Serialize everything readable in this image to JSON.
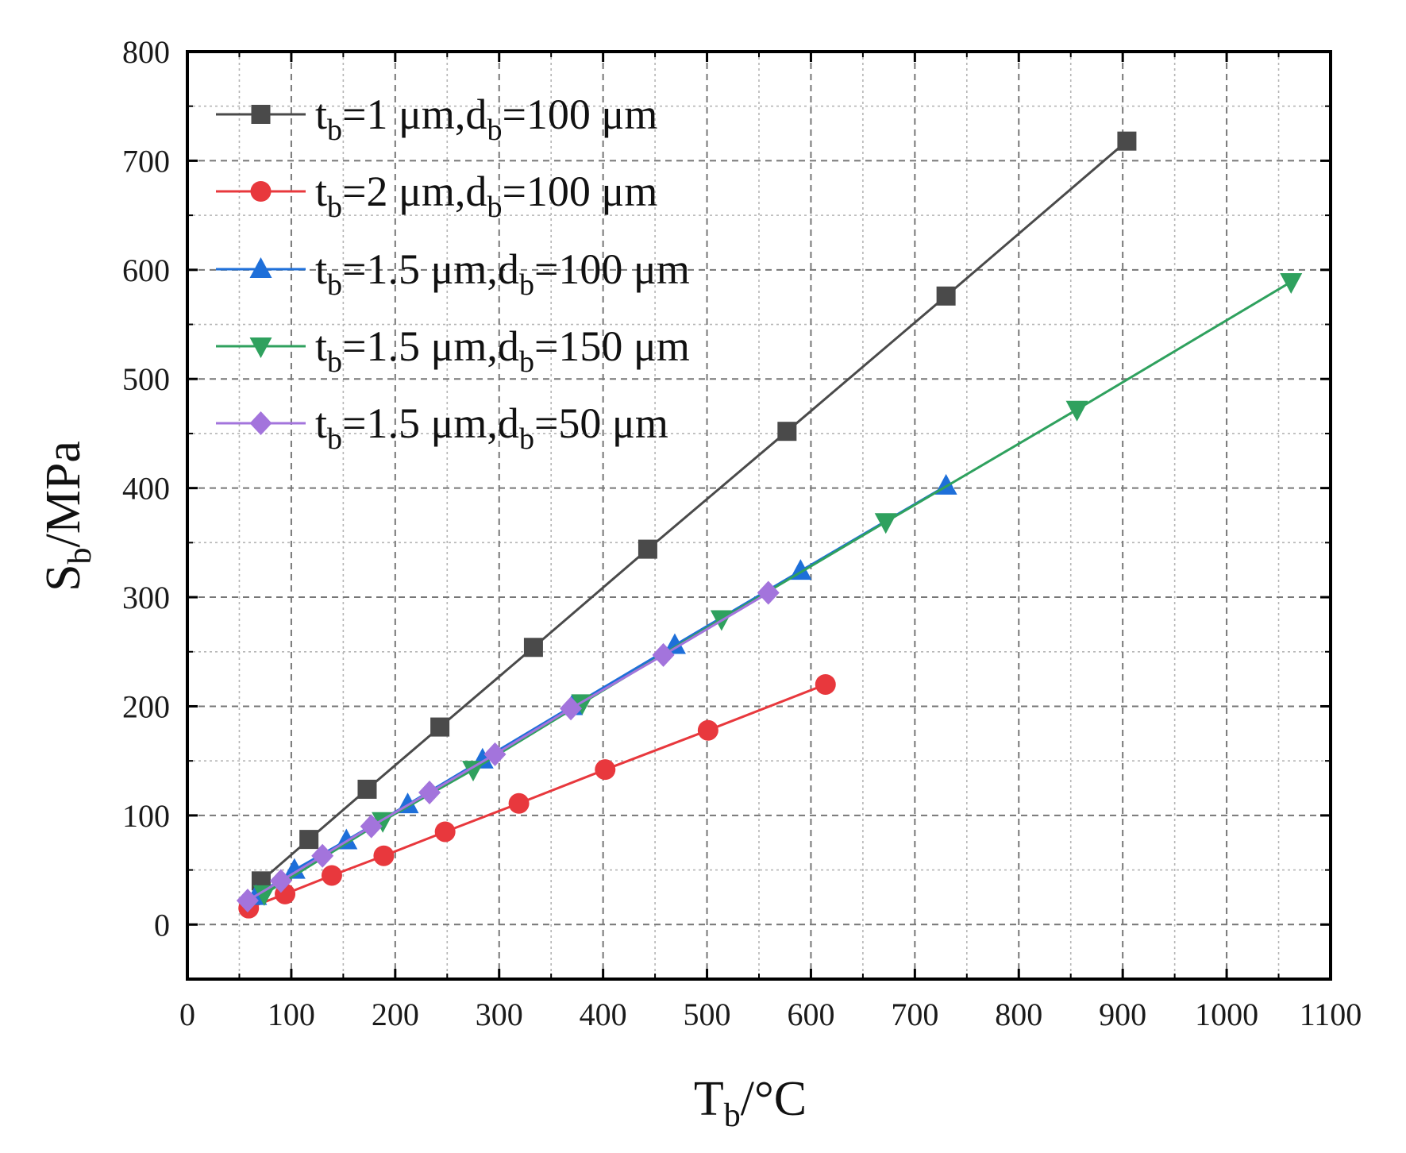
{
  "chart_data": {
    "type": "line",
    "title": "",
    "xlabel": {
      "main": "T",
      "sub": "b",
      "rest": "/°C"
    },
    "ylabel": {
      "main": "S",
      "sub": "b",
      "rest": "/MPa"
    },
    "xlim": [
      0,
      1100
    ],
    "ylim": [
      -50,
      800
    ],
    "xticks": [
      "0",
      "100",
      "200",
      "300",
      "400",
      "500",
      "600",
      "700",
      "800",
      "900",
      "1000",
      "1100"
    ],
    "yticks": [
      "0",
      "100",
      "200",
      "300",
      "400",
      "500",
      "600",
      "700",
      "800"
    ],
    "grid": true,
    "legend_position": "top-left",
    "series": [
      {
        "name": "tb=1 μm,db=100 μm",
        "label_parts": [
          "t",
          "b",
          "=1 μm,d",
          "b",
          "=100 μm"
        ],
        "color": "#4a4a4a",
        "marker": "square",
        "x": [
          71,
          117,
          173,
          243,
          333,
          443,
          577,
          730,
          904
        ],
        "y": [
          40,
          78,
          124,
          181,
          254,
          344,
          452,
          576,
          718
        ]
      },
      {
        "name": "tb=2 μm,db=100 μm",
        "label_parts": [
          "t",
          "b",
          "=2 μm,d",
          "b",
          "=100 μm"
        ],
        "color": "#e8383d",
        "marker": "circle",
        "x": [
          59,
          94,
          139,
          189,
          248,
          319,
          402,
          501,
          614
        ],
        "y": [
          15,
          28,
          45,
          63,
          85,
          111,
          142,
          178,
          220
        ]
      },
      {
        "name": "tb=1.5 μm,db=100 μm",
        "label_parts": [
          "t",
          "b",
          "=1.5 μm,d",
          "b",
          "=100 μm"
        ],
        "color": "#1e6fd9",
        "marker": "triangle-up",
        "x": [
          66,
          103,
          153,
          212,
          284,
          370,
          469,
          590,
          730
        ],
        "y": [
          26,
          50,
          77,
          110,
          151,
          200,
          256,
          324,
          402
        ]
      },
      {
        "name": "tb=1.5 μm,db=150 μm",
        "label_parts": [
          "t",
          "b",
          "=1.5 μm,d",
          "b",
          "=150 μm"
        ],
        "color": "#2fa15e",
        "marker": "triangle-down",
        "x": [
          74,
          188,
          275,
          380,
          514,
          672,
          856,
          1062
        ],
        "y": [
          28,
          95,
          142,
          203,
          280,
          369,
          472,
          589
        ]
      },
      {
        "name": "tb=1.5 μm,db=50 μm",
        "label_parts": [
          "t",
          "b",
          "=1.5 μm,d",
          "b",
          "=50 μm"
        ],
        "color": "#a374dc",
        "marker": "diamond",
        "x": [
          58,
          90,
          130,
          177,
          233,
          296,
          369,
          458,
          559
        ],
        "y": [
          22,
          40,
          63,
          90,
          121,
          156,
          198,
          247,
          304
        ]
      }
    ]
  }
}
